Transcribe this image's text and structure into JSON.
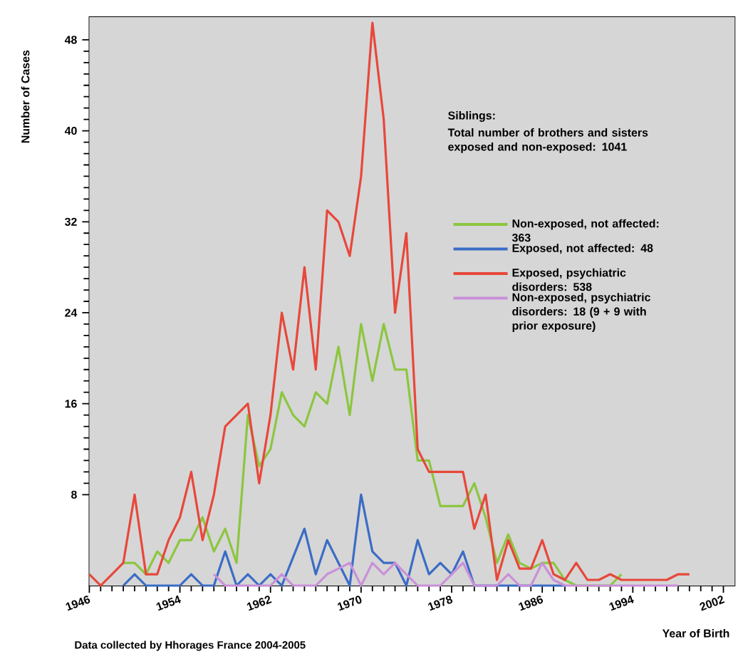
{
  "chart_data": {
    "type": "line",
    "xlabel": "Year of Birth",
    "ylabel": "Number of Cases",
    "x": [
      1946,
      1947,
      1948,
      1949,
      1950,
      1951,
      1952,
      1953,
      1954,
      1955,
      1956,
      1957,
      1958,
      1959,
      1960,
      1961,
      1962,
      1963,
      1964,
      1965,
      1966,
      1967,
      1968,
      1969,
      1970,
      1971,
      1972,
      1973,
      1974,
      1975,
      1976,
      1977,
      1978,
      1979,
      1980,
      1981,
      1982,
      1983,
      1984,
      1985,
      1986,
      1987,
      1988,
      1989,
      1990,
      1991,
      1992,
      1993,
      1994,
      1995,
      1996,
      1997,
      1998,
      1999
    ],
    "series": [
      {
        "name": "Non-exposed, not affected: 363",
        "color": "#8cc63f",
        "values": [
          null,
          null,
          null,
          2,
          2,
          1,
          3,
          2,
          4,
          4,
          6,
          3,
          5,
          2,
          15,
          10.5,
          12,
          17,
          15,
          14,
          17,
          16,
          21,
          15,
          23,
          18,
          23,
          19,
          19,
          11,
          11,
          7,
          7,
          7,
          9,
          6,
          2,
          4.5,
          2,
          1.5,
          2,
          2,
          0.5,
          0,
          0,
          0,
          0,
          1,
          null,
          null,
          null,
          null,
          null,
          null
        ]
      },
      {
        "name": "Exposed, not affected: 48",
        "color": "#3b6cc6",
        "values": [
          null,
          null,
          null,
          0,
          1,
          0,
          0,
          0,
          0,
          1,
          0,
          0,
          3,
          0,
          1,
          0,
          1,
          0,
          2.5,
          5,
          1,
          4,
          2,
          0,
          8,
          3,
          2,
          2,
          0,
          4,
          1,
          2,
          1,
          3,
          0,
          0,
          0,
          0,
          0,
          0,
          0,
          0,
          0,
          null,
          null,
          null,
          null,
          null,
          null,
          null,
          null,
          null,
          null,
          null
        ]
      },
      {
        "name": "Exposed, psychiatric disorders: 538",
        "color": "#e8473b",
        "values": [
          1,
          0,
          1,
          2,
          8,
          1,
          1,
          4,
          6,
          10,
          4,
          8,
          14,
          15,
          16,
          9,
          15,
          24,
          19,
          28,
          19,
          33,
          32,
          29,
          36,
          49.5,
          41,
          24,
          31,
          12,
          10,
          10,
          10,
          10,
          5,
          8,
          0.5,
          4,
          1.5,
          1.5,
          4,
          1,
          0.5,
          2,
          0.5,
          0.5,
          1,
          0.5,
          0.5,
          0.5,
          0.5,
          0.5,
          1,
          1
        ]
      },
      {
        "name": "Non-exposed, psychiatric disorders: 18 (9 + 9 with prior exposure)",
        "color": "#c990d8",
        "values": [
          null,
          null,
          null,
          null,
          null,
          null,
          null,
          null,
          null,
          null,
          null,
          1,
          0,
          0,
          0,
          0,
          0,
          1,
          0,
          0,
          0,
          1,
          1.5,
          2,
          0,
          2,
          1,
          2,
          1,
          0,
          0,
          0,
          1,
          2,
          0,
          0,
          0,
          1,
          0,
          0,
          2,
          0.5,
          0,
          0,
          0,
          0,
          0,
          0,
          0,
          0,
          0,
          0,
          0,
          null
        ]
      }
    ],
    "xlim": [
      1946,
      2003
    ],
    "ylim": [
      0,
      50
    ],
    "xticks": [
      1946,
      1954,
      1962,
      1970,
      1978,
      1986,
      1994,
      2002
    ],
    "yticks": [
      8,
      16,
      24,
      32,
      40,
      48
    ],
    "legend": "right",
    "annotations": [
      "Siblings:",
      "Total number of brothers and sisters exposed and non-exposed: 1041",
      "Data collected by Hhorages France 2004-2005"
    ]
  }
}
